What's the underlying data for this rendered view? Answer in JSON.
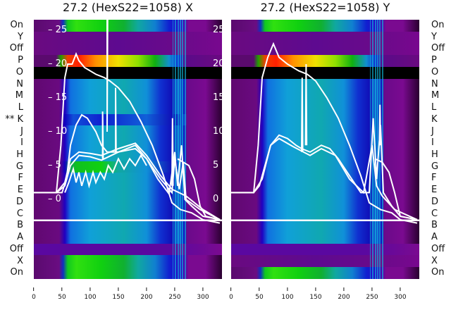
{
  "chart_data": [
    {
      "type": "heatmap",
      "title": "27.2 (HexS22=1058) X",
      "row_labels": [
        "On",
        "Y",
        "Off",
        "P",
        "O",
        "N",
        "M",
        "L",
        "** K",
        "J",
        "I",
        "H",
        "G",
        "F",
        "E",
        "D",
        "C",
        "B",
        "A",
        "Off",
        "X",
        "On"
      ],
      "rows": [
        "on",
        "purple",
        "purple",
        "hot",
        "black",
        "main",
        "main",
        "main",
        "mainblue",
        "main",
        "main",
        "main",
        "green",
        "main",
        "main",
        "main",
        "main",
        "main",
        "main",
        "violet",
        "on",
        "on"
      ],
      "xlim": [
        0,
        334
      ],
      "ylim": [
        -3,
        26.5
      ],
      "xticks": [
        "0",
        "50",
        "100",
        "150",
        "200",
        "250",
        "300"
      ],
      "yticks": [
        "25",
        "20",
        "15",
        "10",
        "5",
        "0"
      ],
      "hline": -3,
      "lines": [
        [
          [
            0,
            1
          ],
          [
            40,
            1
          ],
          [
            48,
            8
          ],
          [
            55,
            18
          ],
          [
            60,
            20
          ],
          [
            68,
            20
          ],
          [
            75,
            21.5
          ],
          [
            80,
            20.5
          ],
          [
            90,
            19.5
          ],
          [
            110,
            18.5
          ],
          [
            125,
            18
          ],
          [
            135,
            17.5
          ],
          [
            150,
            16.5
          ],
          [
            170,
            14.5
          ],
          [
            190,
            11.5
          ],
          [
            210,
            8
          ],
          [
            230,
            3.5
          ],
          [
            245,
            -0.5
          ],
          [
            260,
            -1.5
          ],
          [
            280,
            -2
          ],
          [
            300,
            -3
          ],
          [
            330,
            -3.5
          ]
        ],
        [
          [
            0,
            1
          ],
          [
            40,
            1
          ],
          [
            50,
            1
          ],
          [
            58,
            3
          ],
          [
            65,
            8
          ],
          [
            75,
            11
          ],
          [
            85,
            12.5
          ],
          [
            95,
            12
          ],
          [
            110,
            10
          ],
          [
            120,
            8
          ],
          [
            130,
            7
          ],
          [
            150,
            7
          ],
          [
            180,
            7.5
          ],
          [
            200,
            6
          ],
          [
            220,
            3
          ],
          [
            240,
            0.8
          ],
          [
            250,
            7
          ],
          [
            255,
            2
          ],
          [
            262,
            8
          ],
          [
            268,
            0
          ],
          [
            280,
            -1
          ],
          [
            300,
            -2.5
          ],
          [
            330,
            -3
          ]
        ],
        [
          [
            40,
            1
          ],
          [
            55,
            2
          ],
          [
            65,
            5
          ],
          [
            80,
            6.5
          ],
          [
            100,
            6.3
          ],
          [
            120,
            5.8
          ],
          [
            150,
            7
          ],
          [
            180,
            8
          ],
          [
            200,
            6
          ],
          [
            225,
            3
          ],
          [
            245,
            1
          ],
          [
            250,
            6
          ],
          [
            258,
            1.5
          ],
          [
            265,
            5.5
          ],
          [
            270,
            0
          ],
          [
            295,
            -1.5
          ],
          [
            330,
            -3
          ]
        ],
        [
          [
            40,
            1
          ],
          [
            55,
            2.5
          ],
          [
            65,
            6
          ],
          [
            80,
            7
          ],
          [
            100,
            6.8
          ],
          [
            120,
            6.5
          ],
          [
            150,
            7.5
          ],
          [
            180,
            8.3
          ],
          [
            200,
            6.5
          ],
          [
            225,
            3.5
          ],
          [
            245,
            1.5
          ],
          [
            270,
            0.5
          ],
          [
            300,
            -1.5
          ],
          [
            330,
            -3
          ]
        ],
        [
          [
            55,
            1
          ],
          [
            62,
            2.5
          ],
          [
            70,
            4.5
          ],
          [
            75,
            2.5
          ],
          [
            80,
            4
          ],
          [
            85,
            2
          ],
          [
            92,
            4
          ],
          [
            98,
            2
          ],
          [
            105,
            4
          ],
          [
            110,
            2.5
          ],
          [
            118,
            4
          ],
          [
            125,
            3
          ],
          [
            132,
            5
          ],
          [
            140,
            4
          ],
          [
            150,
            6
          ],
          [
            160,
            4.5
          ],
          [
            170,
            6
          ],
          [
            180,
            5
          ],
          [
            190,
            6.5
          ],
          [
            200,
            5
          ]
        ],
        [
          [
            255,
            6
          ],
          [
            265,
            5.5
          ],
          [
            275,
            5
          ],
          [
            285,
            3
          ],
          [
            295,
            -1
          ],
          [
            305,
            -2.5
          ],
          [
            330,
            -3
          ]
        ],
        [
          [
            130,
            27
          ],
          [
            130,
            10
          ],
          [
            131,
            27
          ]
        ],
        [
          [
            122,
            6
          ],
          [
            122,
            13
          ],
          [
            123,
            6
          ]
        ],
        [
          [
            145,
            7
          ],
          [
            145,
            16.5
          ],
          [
            146,
            7
          ]
        ],
        [
          [
            245,
            2
          ],
          [
            246,
            12
          ],
          [
            247,
            2
          ]
        ]
      ]
    },
    {
      "type": "heatmap",
      "title": "27.2 (HexS22=1058) Y",
      "row_labels": [
        "On",
        "Y",
        "Off",
        "P",
        "O",
        "N",
        "M",
        "L",
        "K",
        "J",
        "I",
        "H",
        "G",
        "F",
        "E",
        "D",
        "C",
        "B",
        "A",
        "Off",
        "X",
        "On"
      ],
      "rows": [
        "on",
        "purple",
        "purple",
        "hot",
        "black",
        "main",
        "main",
        "main",
        "main",
        "main",
        "main",
        "main",
        "main",
        "main",
        "main",
        "main",
        "main",
        "main",
        "main",
        "violet",
        "purple",
        "on"
      ],
      "xlim": [
        0,
        334
      ],
      "ylim": [
        -3,
        26.5
      ],
      "xticks": [
        "0",
        "50",
        "100",
        "150",
        "200",
        "250",
        "300"
      ],
      "yticks": [
        "25",
        "20",
        "15",
        "10",
        "5",
        "0"
      ],
      "hline": -3,
      "lines": [
        [
          [
            0,
            1
          ],
          [
            40,
            1
          ],
          [
            48,
            8
          ],
          [
            55,
            18
          ],
          [
            65,
            21
          ],
          [
            75,
            23
          ],
          [
            85,
            21
          ],
          [
            100,
            20
          ],
          [
            120,
            19
          ],
          [
            135,
            18.5
          ],
          [
            150,
            17.5
          ],
          [
            170,
            15
          ],
          [
            190,
            12
          ],
          [
            210,
            8
          ],
          [
            230,
            3.5
          ],
          [
            245,
            -0.5
          ],
          [
            265,
            -1.5
          ],
          [
            285,
            -2
          ],
          [
            300,
            -3
          ],
          [
            330,
            -3.5
          ]
        ],
        [
          [
            0,
            1
          ],
          [
            40,
            1
          ],
          [
            50,
            2
          ],
          [
            60,
            5
          ],
          [
            70,
            8
          ],
          [
            85,
            9.5
          ],
          [
            100,
            9
          ],
          [
            115,
            8
          ],
          [
            125,
            7.5
          ],
          [
            140,
            7
          ],
          [
            160,
            8
          ],
          [
            175,
            7.5
          ],
          [
            190,
            6
          ],
          [
            210,
            3.5
          ],
          [
            230,
            1
          ],
          [
            245,
            1
          ],
          [
            252,
            12
          ],
          [
            258,
            3
          ],
          [
            265,
            11
          ],
          [
            270,
            1
          ],
          [
            285,
            -1
          ],
          [
            300,
            -2.5
          ],
          [
            330,
            -3
          ]
        ],
        [
          [
            40,
            1
          ],
          [
            55,
            3
          ],
          [
            70,
            8
          ],
          [
            85,
            9
          ],
          [
            110,
            7.8
          ],
          [
            140,
            6.5
          ],
          [
            160,
            7.5
          ],
          [
            185,
            6.5
          ],
          [
            210,
            3
          ],
          [
            235,
            1
          ],
          [
            250,
            8
          ],
          [
            258,
            2
          ],
          [
            268,
            0.5
          ],
          [
            290,
            -1.5
          ],
          [
            330,
            -3
          ]
        ],
        [
          [
            255,
            6
          ],
          [
            268,
            5.5
          ],
          [
            280,
            4
          ],
          [
            290,
            1
          ],
          [
            300,
            -2.5
          ],
          [
            330,
            -3
          ]
        ],
        [
          [
            125,
            7
          ],
          [
            126,
            18
          ],
          [
            127,
            7
          ]
        ],
        [
          [
            132,
            8
          ],
          [
            133,
            20
          ],
          [
            134,
            8
          ]
        ],
        [
          [
            263,
            8
          ],
          [
            264,
            14
          ],
          [
            265,
            8
          ]
        ]
      ]
    }
  ],
  "colors": {
    "line": "#ffffff"
  }
}
